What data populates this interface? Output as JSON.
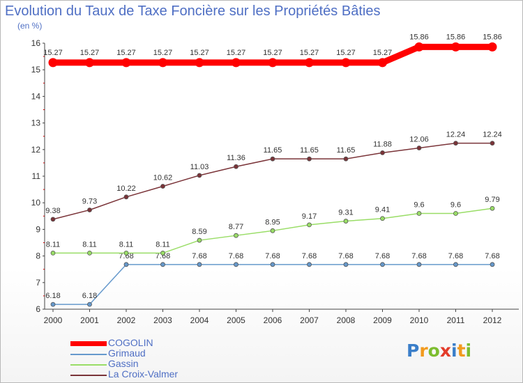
{
  "chart_data": {
    "type": "line",
    "title": "Evolution du Taux de Taxe Foncière sur les Propriétés Bâties",
    "subtitle": "(en %)",
    "categories": [
      "2000",
      "2001",
      "2002",
      "2003",
      "2004",
      "2005",
      "2006",
      "2007",
      "2008",
      "2009",
      "2010",
      "2011",
      "2012"
    ],
    "ylim": [
      6,
      16
    ],
    "y_ticks": [
      "6",
      "7",
      "8",
      "9",
      "10",
      "11",
      "12",
      "13",
      "14",
      "15",
      "16"
    ],
    "legend_position": "bottom-left",
    "series": [
      {
        "name": "COGOLIN",
        "color": "#ff0000",
        "values": [
          15.27,
          15.27,
          15.27,
          15.27,
          15.27,
          15.27,
          15.27,
          15.27,
          15.27,
          15.27,
          15.86,
          15.86,
          15.86
        ],
        "labels": [
          "15.27",
          "15.27",
          "15.27",
          "15.27",
          "15.27",
          "15.27",
          "15.27",
          "15.27",
          "15.27",
          "15.27",
          "15.86",
          "15.86",
          "15.86"
        ]
      },
      {
        "name": "Grimaud",
        "color": "#6699cc",
        "values": [
          6.18,
          6.18,
          7.68,
          7.68,
          7.68,
          7.68,
          7.68,
          7.68,
          7.68,
          7.68,
          7.68,
          7.68,
          7.68
        ],
        "labels": [
          "6.18",
          "6.18",
          "7.68",
          "7.68",
          "7.68",
          "7.68",
          "7.68",
          "7.68",
          "7.68",
          "7.68",
          "7.68",
          "7.68",
          "7.68"
        ]
      },
      {
        "name": "Gassin",
        "color": "#99dd66",
        "values": [
          8.11,
          8.11,
          8.11,
          8.11,
          8.59,
          8.77,
          8.95,
          9.17,
          9.31,
          9.41,
          9.6,
          9.6,
          9.79
        ],
        "labels": [
          "8.11",
          "8.11",
          "8.11",
          "8.11",
          "8.59",
          "8.77",
          "8.95",
          "9.17",
          "9.31",
          "9.41",
          "9.6",
          "9.6",
          "9.79"
        ]
      },
      {
        "name": "La Croix-Valmer",
        "color": "#7a3338",
        "values": [
          9.38,
          9.73,
          10.22,
          10.62,
          11.03,
          11.36,
          11.65,
          11.65,
          11.65,
          11.88,
          12.06,
          12.24,
          12.24
        ],
        "labels": [
          "9.38",
          "9.73",
          "10.22",
          "10.62",
          "11.03",
          "11.36",
          "11.65",
          "11.65",
          "11.65",
          "11.88",
          "12.06",
          "12.24",
          "12.24"
        ]
      }
    ]
  },
  "logo": {
    "letters": [
      "P",
      "r",
      "o",
      "x",
      "i",
      "t",
      "i"
    ],
    "colors": [
      "#3a7ec9",
      "#f29a1d",
      "#7cbd2f",
      "#e33b2a",
      "#3a7ec9",
      "#f29a1d",
      "#7cbd2f"
    ]
  }
}
